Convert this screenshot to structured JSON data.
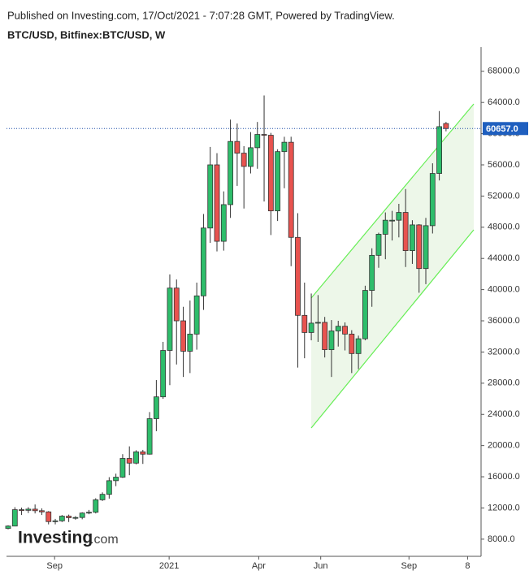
{
  "chart_data": {
    "type": "candlestick",
    "header": "Published on Investing.com, 17/Oct/2021 - 7:07:28 GMT, Powered by TradingView.",
    "title": "BTC/USD, Bitfinex:BTC/USD, W",
    "watermark": {
      "brand": "Investing",
      "suffix": ".com"
    },
    "up_color": "#2ebd6b",
    "down_color": "#e8534f",
    "open": [
      9380,
      9680,
      11780,
      11700,
      11850,
      11650,
      11500,
      10250,
      10350,
      10950,
      10750,
      10780,
      11350,
      11450,
      13050,
      13750,
      15500,
      15950,
      18350,
      17750,
      19200,
      18900,
      23450,
      26250,
      32200,
      40200,
      36000,
      32100,
      34300,
      39200,
      47900,
      56000,
      46200,
      50900,
      59000,
      57500,
      55800,
      58200,
      59900,
      59800,
      50100,
      57700,
      58900,
      46700,
      36700,
      34500,
      35700,
      35800,
      32300,
      34700,
      35300,
      34300,
      31800,
      33700,
      39900,
      44400,
      47100,
      48900,
      48900,
      49900,
      45000,
      48300,
      42700,
      48200,
      54900,
      61300
    ],
    "high": [
      9780,
      12100,
      12050,
      12100,
      12450,
      11950,
      11600,
      10600,
      11100,
      11150,
      10950,
      11450,
      11750,
      13250,
      14000,
      15950,
      16400,
      18900,
      19900,
      19400,
      19450,
      24300,
      28400,
      33300,
      41950,
      41300,
      37800,
      38600,
      40900,
      49700,
      58300,
      57500,
      52600,
      61800,
      61300,
      58400,
      60200,
      61500,
      64900,
      60100,
      58000,
      59600,
      59600,
      49800,
      40900,
      39500,
      39300,
      36500,
      36100,
      36000,
      35800,
      34800,
      34100,
      40500,
      45300,
      47300,
      49900,
      50100,
      51000,
      52900,
      48900,
      48400,
      49200,
      56200,
      62900,
      61500
    ],
    "low": [
      9250,
      9650,
      11100,
      11350,
      11300,
      11100,
      9900,
      9900,
      10200,
      10200,
      10500,
      10550,
      11200,
      11300,
      12900,
      13200,
      14800,
      15850,
      16200,
      17600,
      17650,
      18850,
      21850,
      26000,
      27750,
      30400,
      28800,
      29300,
      32300,
      37400,
      46000,
      44900,
      45000,
      49200,
      53300,
      50400,
      54900,
      55500,
      51300,
      47000,
      48800,
      53000,
      43000,
      30000,
      31200,
      33500,
      33300,
      31300,
      28800,
      32700,
      32200,
      29300,
      29800,
      33500,
      37800,
      42800,
      43900,
      46300,
      46700,
      42900,
      43300,
      39600,
      40700,
      47200,
      54000,
      60300
    ],
    "close": [
      9680,
      11780,
      11700,
      11850,
      11650,
      11500,
      10250,
      10350,
      10950,
      10750,
      10780,
      11350,
      11450,
      13050,
      13750,
      15500,
      15950,
      18350,
      17750,
      19200,
      18900,
      23450,
      26250,
      32200,
      40200,
      36000,
      32100,
      34300,
      39200,
      47900,
      56000,
      46200,
      50900,
      59000,
      57500,
      55800,
      58200,
      59900,
      59800,
      50100,
      57700,
      58900,
      46700,
      36700,
      34500,
      35700,
      35800,
      32300,
      34700,
      35300,
      34300,
      31800,
      33700,
      39900,
      44400,
      47100,
      48900,
      48900,
      49900,
      45000,
      48300,
      42700,
      48200,
      54900,
      60900,
      60657
    ],
    "last_price": {
      "value": 60657,
      "label": "60657.0"
    },
    "xlim": [
      -0.24,
      70.2
    ],
    "xticks": [
      {
        "value": 6.9,
        "label": "Sep"
      },
      {
        "value": 23.9,
        "label": "2021"
      },
      {
        "value": 37.2,
        "label": "Apr"
      },
      {
        "value": 46.4,
        "label": "Jun"
      },
      {
        "value": 59.5,
        "label": "Sep"
      },
      {
        "value": 68.2,
        "label": "8"
      }
    ],
    "ylim": [
      5800,
      71100
    ],
    "yticks": [
      {
        "value": 8000,
        "label": "8000.0"
      },
      {
        "value": 12000,
        "label": "12000.0"
      },
      {
        "value": 16000,
        "label": "16000.0"
      },
      {
        "value": 20000,
        "label": "20000.0"
      },
      {
        "value": 24000,
        "label": "24000.0"
      },
      {
        "value": 28000,
        "label": "28000.0"
      },
      {
        "value": 32000,
        "label": "32000.0"
      },
      {
        "value": 36000,
        "label": "36000.0"
      },
      {
        "value": 40000,
        "label": "40000.0"
      },
      {
        "value": 44000,
        "label": "44000.0"
      },
      {
        "value": 48000,
        "label": "48000.0"
      },
      {
        "value": 52000,
        "label": "52000.0"
      },
      {
        "value": 56000,
        "label": "56000.0"
      },
      {
        "value": 60000,
        "label": "60000.0"
      },
      {
        "value": 64000,
        "label": "64000.0"
      },
      {
        "value": 68000,
        "label": "68000.0"
      }
    ]
  }
}
